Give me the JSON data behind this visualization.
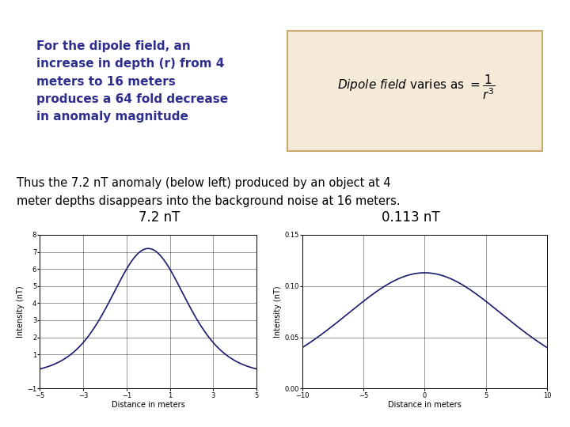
{
  "bg_color": "#ffffff",
  "title_text": "For the dipole field, an\nincrease in depth (r) from 4\nmeters to 16 meters\nproduces a 64 fold decrease\nin anomaly magnitude",
  "title_color": "#2e2e8e",
  "title_fontsize": 11,
  "body_text": "Thus the 7.2 nT anomaly (below left) produced by an object at 4\nmeter depths disappears into the background noise at 16 meters.",
  "body_fontsize": 10.5,
  "formula_box_color": "#f5ead8",
  "formula_box_edge": "#c8a96e",
  "plot1_label": "7.2 nT",
  "plot1_xlabel": "Distance in meters",
  "plot1_ylabel": "Intensity (nT)",
  "plot1_xlim": [
    -5,
    5
  ],
  "plot1_ylim": [
    -1,
    8
  ],
  "plot1_xticks": [
    -5,
    -3,
    -1,
    1,
    3,
    5
  ],
  "plot1_yticks": [
    -1,
    1,
    2,
    3,
    4,
    5,
    6,
    7,
    8
  ],
  "plot1_depth": 4,
  "plot2_label": "0.113 nT",
  "plot2_xlabel": "Distance in meters",
  "plot2_ylabel": "Intensity (nT)",
  "plot2_xlim": [
    -10,
    10
  ],
  "plot2_ylim": [
    0,
    0.15
  ],
  "plot2_xticks": [
    -10,
    -5,
    0,
    5,
    10
  ],
  "plot2_yticks": [
    0,
    0.05,
    0.1,
    0.15
  ],
  "plot2_depth": 16,
  "line_color": "#1a1a6e",
  "line_width": 1.2,
  "tick_fontsize": 6,
  "axis_label_fontsize": 7
}
